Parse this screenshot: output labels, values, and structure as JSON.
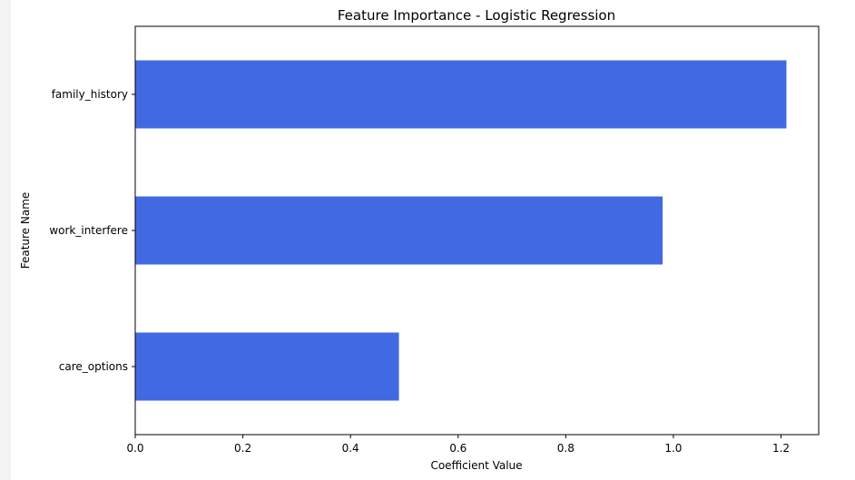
{
  "chart_data": {
    "type": "bar",
    "orientation": "horizontal",
    "title": "Feature Importance - Logistic Regression",
    "xlabel": "Coefficient Value",
    "ylabel": "Feature Name",
    "categories": [
      "family_history",
      "work_interfere",
      "care_options"
    ],
    "values": [
      1.21,
      0.98,
      0.49
    ],
    "xlim": [
      0,
      1.27
    ],
    "xticks": [
      0.0,
      0.2,
      0.4,
      0.6,
      0.8,
      1.0,
      1.2
    ],
    "xtick_labels": [
      "0.0",
      "0.2",
      "0.4",
      "0.6",
      "0.8",
      "1.0",
      "1.2"
    ],
    "grid": false,
    "bar_color": "#4169e1"
  }
}
